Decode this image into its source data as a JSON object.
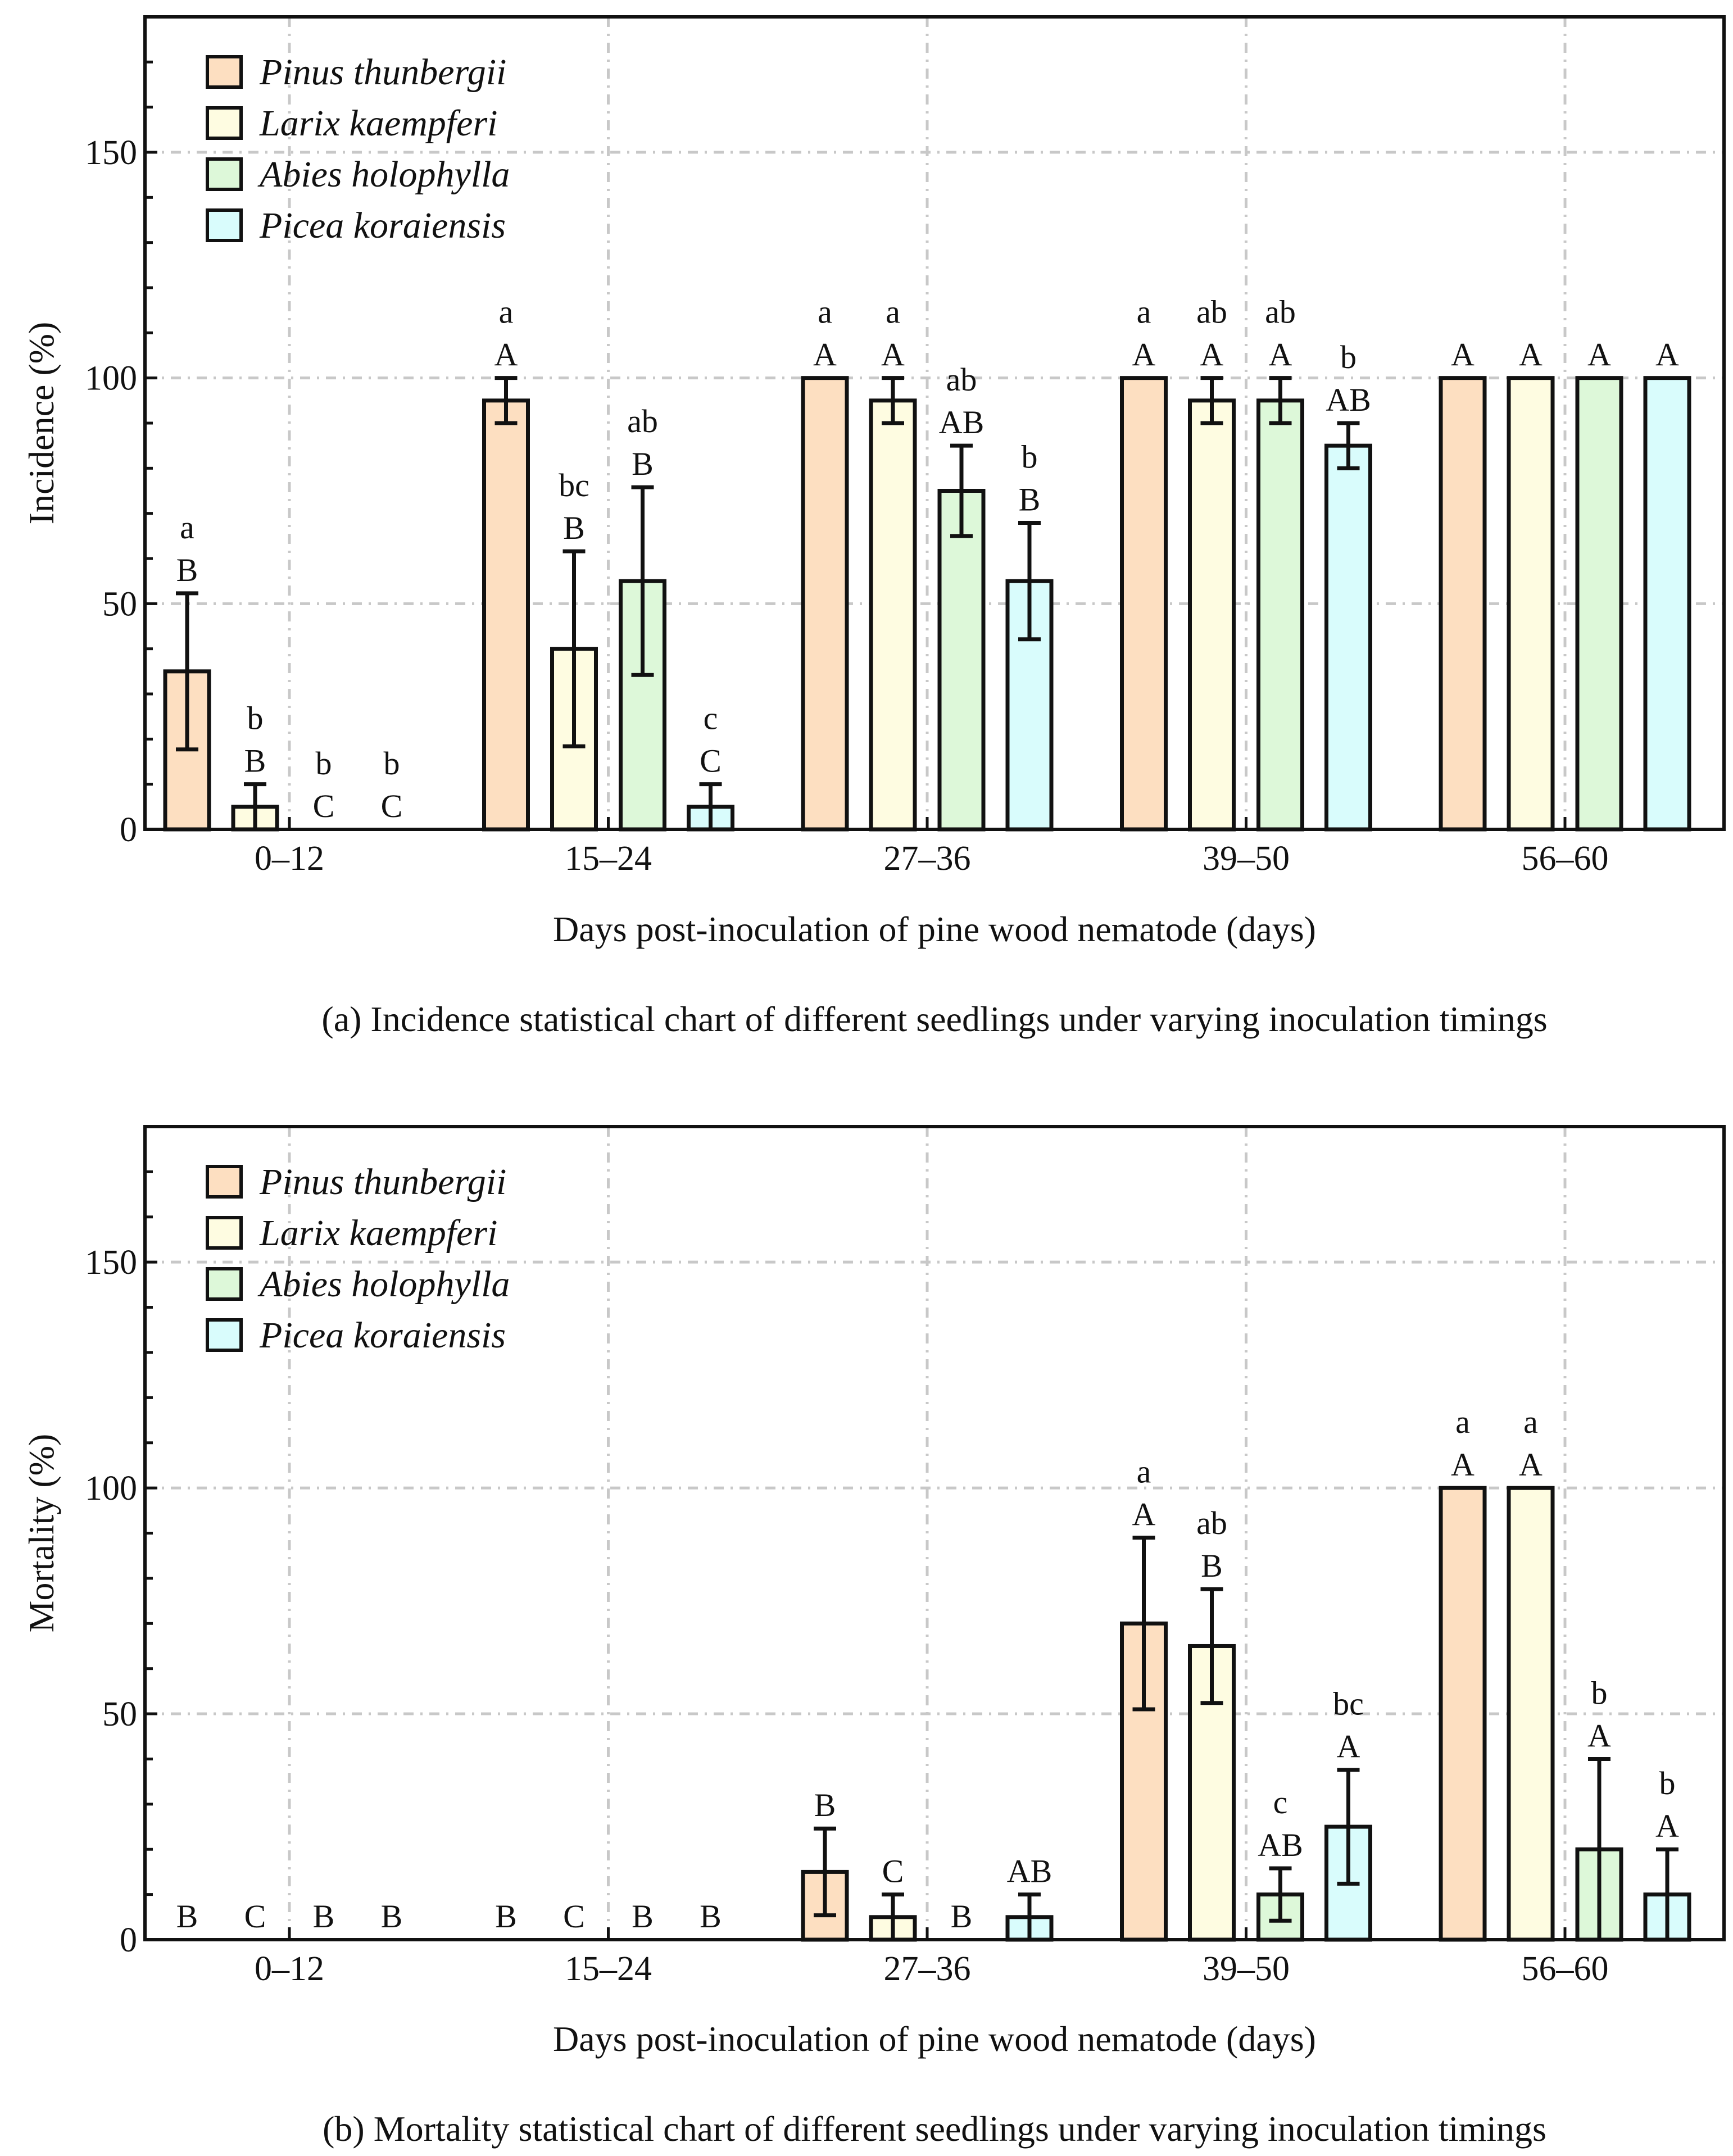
{
  "chart_data": [
    {
      "type": "bar",
      "id": "incidence",
      "caption": "(a) Incidence statistical chart of different seedlings under varying inoculation timings",
      "xlabel": "Days post-inoculation of pine wood nematode (days)",
      "ylabel": "Incidence (%)",
      "ylim": [
        0,
        180
      ],
      "yticks": [
        0,
        50,
        100,
        150
      ],
      "ytick_labels": [
        "0",
        "50",
        "100",
        "150"
      ],
      "grid": true,
      "legend_position": "top-left",
      "categories": [
        "0–12",
        "15–24",
        "27–36",
        "39–50",
        "56–60"
      ],
      "series": [
        {
          "name": "Pinus thunbergii",
          "color": "#FDDFC1",
          "values": [
            35,
            95,
            100,
            100,
            100
          ],
          "errors": [
            17.3,
            5,
            0,
            0,
            0
          ],
          "letters_lower": [
            "a",
            "a",
            "a",
            "a",
            ""
          ],
          "letters_upper": [
            "B",
            "A",
            "A",
            "A",
            "A"
          ]
        },
        {
          "name": "Larix kaempferi",
          "color": "#FEFCE1",
          "values": [
            5,
            40,
            95,
            95,
            100
          ],
          "errors": [
            5,
            21.6,
            5,
            5,
            0
          ],
          "letters_lower": [
            "b",
            "bc",
            "a",
            "ab",
            ""
          ],
          "letters_upper": [
            "B",
            "B",
            "A",
            "A",
            "A"
          ]
        },
        {
          "name": "Abies holophylla",
          "color": "#DDF8D9",
          "values": [
            0,
            55,
            75,
            95,
            100
          ],
          "errors": [
            0,
            20.8,
            10,
            5,
            0
          ],
          "letters_lower": [
            "b",
            "ab",
            "ab",
            "ab",
            ""
          ],
          "letters_upper": [
            "C",
            "B",
            "AB",
            "A",
            "A"
          ]
        },
        {
          "name": "Picea koraiensis",
          "color": "#D9FCFC",
          "values": [
            0,
            5,
            55,
            85,
            100
          ],
          "errors": [
            0,
            5,
            12.9,
            5,
            0
          ],
          "letters_lower": [
            "b",
            "c",
            "b",
            "b",
            ""
          ],
          "letters_upper": [
            "C",
            "C",
            "B",
            "AB",
            "A"
          ]
        }
      ]
    },
    {
      "type": "bar",
      "id": "mortality",
      "caption": "(b) Mortality statistical chart of different seedlings under varying inoculation timings",
      "xlabel": "Days post-inoculation of pine wood nematode (days)",
      "ylabel": "Mortality (%)",
      "ylim": [
        0,
        180
      ],
      "yticks": [
        0,
        50,
        100,
        150
      ],
      "ytick_labels": [
        "0",
        "50",
        "100",
        "150"
      ],
      "grid": true,
      "legend_position": "top-left",
      "categories": [
        "0–12",
        "15–24",
        "27–36",
        "39–50",
        "56–60"
      ],
      "series": [
        {
          "name": "Pinus thunbergii",
          "color": "#FDDFC1",
          "values": [
            0,
            0,
            15,
            70,
            100
          ],
          "errors": [
            0,
            0,
            9.6,
            19,
            0
          ],
          "letters_lower": [
            "",
            "",
            "",
            "a",
            "a"
          ],
          "letters_upper": [
            "B",
            "B",
            "B",
            "A",
            "A"
          ]
        },
        {
          "name": "Larix kaempferi",
          "color": "#FEFCE1",
          "values": [
            0,
            0,
            5,
            65,
            100
          ],
          "errors": [
            0,
            0,
            5,
            12.6,
            0
          ],
          "letters_lower": [
            "",
            "",
            "",
            "ab",
            "a"
          ],
          "letters_upper": [
            "C",
            "C",
            "C",
            "B",
            "A"
          ]
        },
        {
          "name": "Abies holophylla",
          "color": "#DDF8D9",
          "values": [
            0,
            0,
            0,
            10,
            20
          ],
          "errors": [
            0,
            0,
            0,
            5.8,
            20
          ],
          "letters_lower": [
            "",
            "",
            "",
            "c",
            "b"
          ],
          "letters_upper": [
            "B",
            "B",
            "B",
            "AB",
            "A"
          ]
        },
        {
          "name": "Picea koraiensis",
          "color": "#D9FCFC",
          "values": [
            0,
            0,
            5,
            25,
            10
          ],
          "errors": [
            0,
            0,
            5,
            12.6,
            10
          ],
          "letters_lower": [
            "",
            "",
            "",
            "bc",
            "b"
          ],
          "letters_upper": [
            "B",
            "B",
            "AB",
            "A",
            "A"
          ]
        }
      ]
    }
  ]
}
